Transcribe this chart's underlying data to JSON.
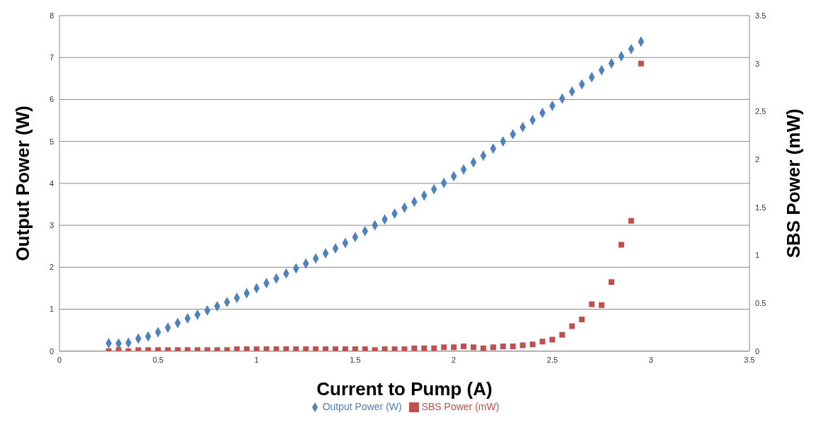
{
  "chart_data": {
    "type": "scatter",
    "xlabel": "Current to Pump (A)",
    "ylabel": "Output Power (W)",
    "y2label": "SBS Power (mW)",
    "x": [
      0.25,
      0.3,
      0.35,
      0.4,
      0.45,
      0.5,
      0.55,
      0.6,
      0.65,
      0.7,
      0.75,
      0.8,
      0.85,
      0.9,
      0.95,
      1.0,
      1.05,
      1.1,
      1.15,
      1.2,
      1.25,
      1.3,
      1.35,
      1.4,
      1.45,
      1.5,
      1.55,
      1.6,
      1.65,
      1.7,
      1.75,
      1.8,
      1.85,
      1.9,
      1.95,
      2.0,
      2.05,
      2.1,
      2.15,
      2.2,
      2.25,
      2.3,
      2.35,
      2.4,
      2.45,
      2.5,
      2.55,
      2.6,
      2.65,
      2.7,
      2.75,
      2.8,
      2.85,
      2.9,
      2.95
    ],
    "series": [
      {
        "name": "Output Power (W)",
        "color": "#4f81bd",
        "marker": "diamond",
        "values": [
          0.19,
          0.18,
          0.2,
          0.3,
          0.35,
          0.45,
          0.56,
          0.67,
          0.78,
          0.87,
          0.97,
          1.07,
          1.17,
          1.27,
          1.38,
          1.5,
          1.62,
          1.73,
          1.85,
          1.97,
          2.09,
          2.21,
          2.33,
          2.45,
          2.58,
          2.72,
          2.86,
          3.0,
          3.14,
          3.28,
          3.42,
          3.56,
          3.71,
          3.86,
          4.01,
          4.17,
          4.33,
          4.5,
          4.66,
          4.83,
          5.0,
          5.17,
          5.34,
          5.51,
          5.68,
          5.85,
          6.02,
          6.19,
          6.36,
          6.53,
          6.7,
          6.86,
          7.03,
          7.2,
          7.38
        ]
      },
      {
        "name": "SBS Power (mW)",
        "color": "#c0504d",
        "marker": "square",
        "axis": "y2",
        "values": [
          0,
          0.01,
          0,
          0.01,
          0.01,
          0.01,
          0.01,
          0.01,
          0.01,
          0.01,
          0.01,
          0.01,
          0.01,
          0.02,
          0.02,
          0.02,
          0.02,
          0.02,
          0.02,
          0.02,
          0.02,
          0.02,
          0.02,
          0.02,
          0.02,
          0.02,
          0.02,
          0.01,
          0.02,
          0.02,
          0.02,
          0.03,
          0.03,
          0.03,
          0.04,
          0.04,
          0.05,
          0.04,
          0.03,
          0.04,
          0.05,
          0.05,
          0.06,
          0.07,
          0.1,
          0.12,
          0.17,
          0.26,
          0.33,
          0.49,
          0.48,
          0.72,
          1.11,
          1.36,
          3.0
        ]
      }
    ],
    "xlim": [
      0,
      3.5
    ],
    "xticks": [
      0,
      0.5,
      1,
      1.5,
      2,
      2.5,
      3,
      3.5
    ],
    "ylim": [
      0,
      8
    ],
    "yticks": [
      0,
      1,
      2,
      3,
      4,
      5,
      6,
      7,
      8
    ],
    "y2lim": [
      0,
      3.5
    ],
    "y2ticks": [
      0,
      0.5,
      1,
      1.5,
      2,
      2.5,
      3,
      3.5
    ],
    "grid": "y",
    "legend": "bottom"
  }
}
